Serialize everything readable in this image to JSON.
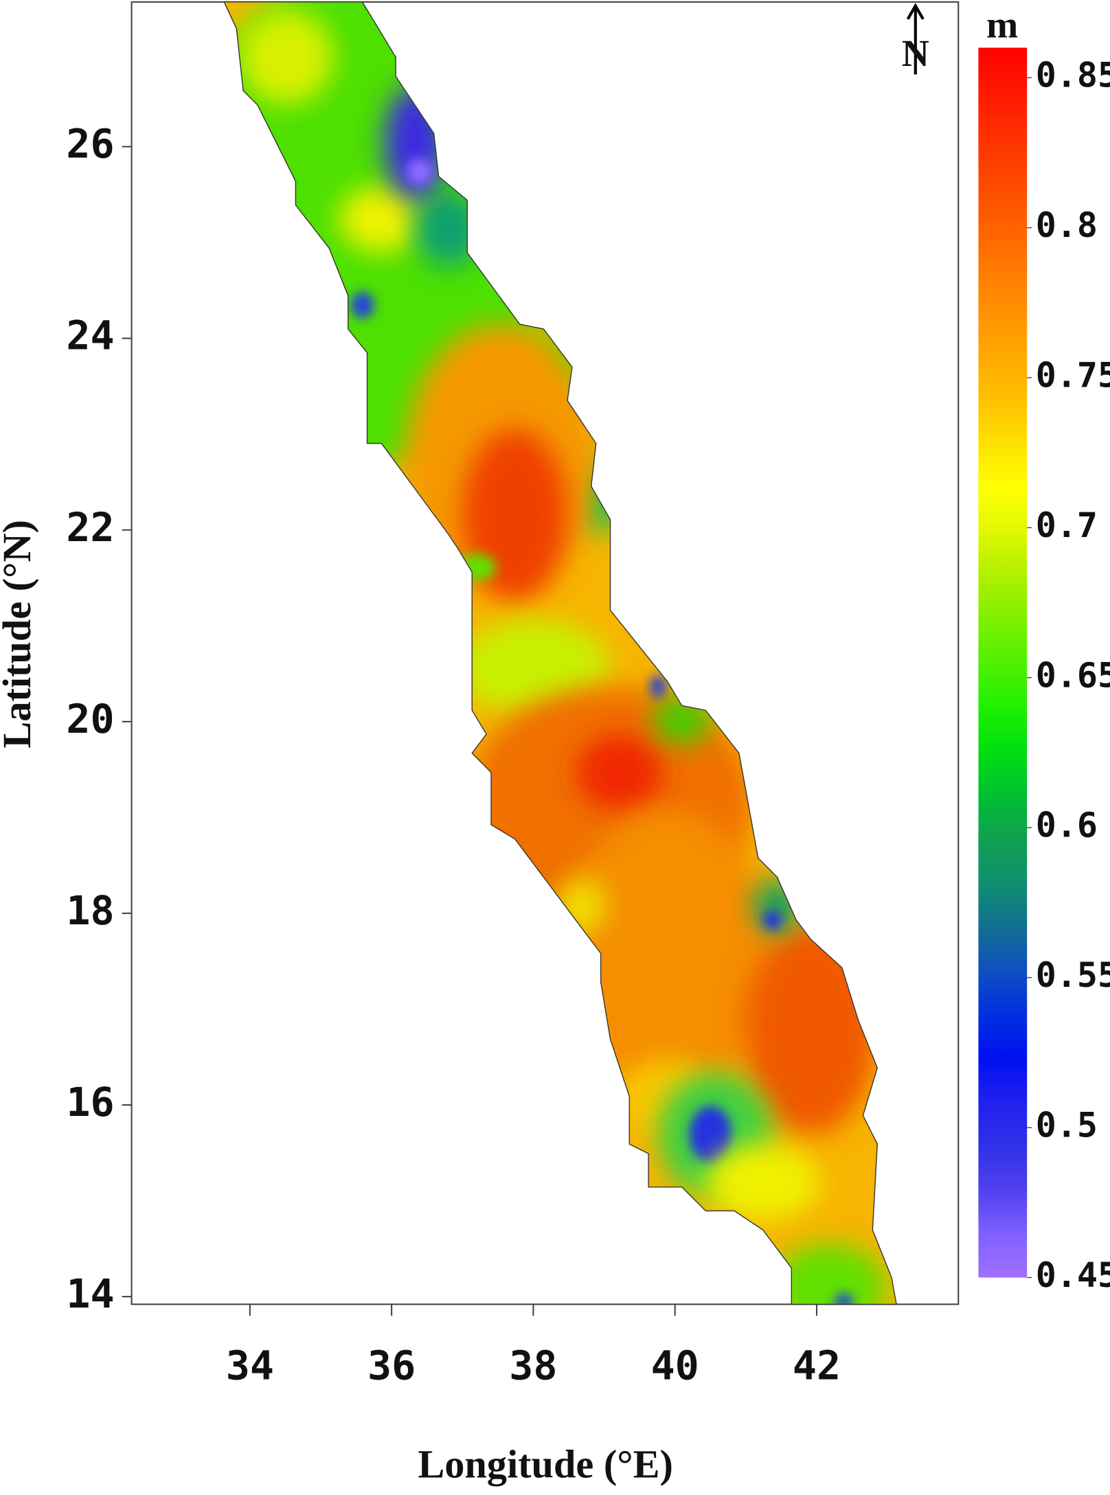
{
  "map": {
    "x_label": "Longitude (°E)",
    "y_label": "Latitude (°N)",
    "xlim": [
      32.33,
      44.0
    ],
    "ylim": [
      13.92,
      27.51
    ],
    "xticks": [
      34,
      36,
      38,
      40,
      42
    ],
    "yticks": [
      14,
      16,
      18,
      20,
      22,
      24,
      26
    ],
    "north_label": "N",
    "colorbar": {
      "unit": "m",
      "lim": [
        0.45,
        0.86
      ],
      "ticks": [
        0.45,
        0.5,
        0.55,
        0.6,
        0.65,
        0.7,
        0.75,
        0.8,
        0.85
      ]
    }
  }
}
